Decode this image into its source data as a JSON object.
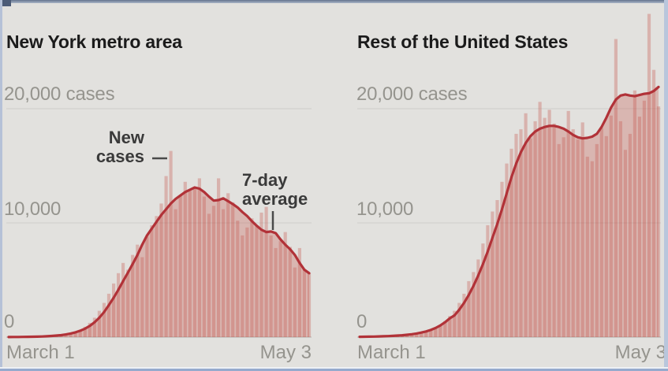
{
  "colors": {
    "background": "#e2e1de",
    "bar_fill": "rgba(197,82,72,0.32)",
    "area_fill": "rgba(197,82,72,0.30)",
    "avg_line": "#b13238",
    "grid_line": "#d2d1cd",
    "baseline": "#c2c1bd",
    "title_text": "#1b1b1b",
    "axis_text": "#95948e",
    "annotation_text": "#3a3a3a",
    "pointer": "#4a4a4a"
  },
  "panels": [
    {
      "title": "New York metro area",
      "y_labels": [
        "20,000 cases",
        "10,000",
        "0"
      ],
      "x_label_start": "March 1",
      "x_label_end": "May 3",
      "annotations": {
        "bars": "New\ncases",
        "line": "7-day\naverage"
      }
    },
    {
      "title": "Rest of the United States",
      "y_labels": [
        "20,000 cases",
        "10,000",
        "0"
      ],
      "x_label_start": "March 1",
      "x_label_end": "May 3"
    }
  ],
  "chart_data": [
    {
      "type": "bar",
      "title": "New York metro area",
      "xlabel": "",
      "ylabel": "cases",
      "x": {
        "start": "March 1",
        "end": "May 3",
        "unit": "day",
        "n": 64
      },
      "ylim": [
        0,
        29000
      ],
      "gridlines": [
        0,
        10000,
        20000
      ],
      "legend_position": "annotated-inline",
      "series": [
        {
          "name": "New cases",
          "type": "bar",
          "values": [
            5,
            8,
            10,
            14,
            18,
            25,
            35,
            50,
            70,
            95,
            130,
            180,
            250,
            350,
            480,
            650,
            900,
            1250,
            1700,
            2300,
            3000,
            3800,
            4700,
            5600,
            6500,
            5900,
            7200,
            8100,
            7000,
            8800,
            9800,
            10600,
            11700,
            14100,
            16300,
            11200,
            12400,
            13600,
            12800,
            13100,
            13900,
            12300,
            10800,
            11500,
            13900,
            11200,
            12600,
            11800,
            10200,
            8900,
            9600,
            10400,
            9800,
            10900,
            11400,
            8900,
            7800,
            8400,
            9200,
            7900,
            6100,
            7800,
            5900,
            5600
          ]
        },
        {
          "name": "7-day average",
          "type": "line",
          "values": [
            10,
            12,
            15,
            19,
            25,
            33,
            44,
            58,
            78,
            103,
            135,
            175,
            235,
            315,
            420,
            560,
            740,
            980,
            1300,
            1700,
            2200,
            2800,
            3450,
            4150,
            4900,
            5650,
            6400,
            7200,
            8100,
            8900,
            9500,
            10100,
            10700,
            11200,
            11700,
            12100,
            12400,
            12700,
            12900,
            13100,
            13000,
            12700,
            12300,
            11950,
            12000,
            12150,
            11900,
            11650,
            11350,
            10950,
            10600,
            10150,
            9750,
            9400,
            9200,
            9250,
            9100,
            8550,
            8100,
            7700,
            7200,
            6500,
            5900,
            5600
          ]
        }
      ]
    },
    {
      "type": "bar",
      "title": "Rest of the United States",
      "xlabel": "",
      "ylabel": "cases",
      "x": {
        "start": "March 1",
        "end": "May 3",
        "unit": "day",
        "n": 64
      },
      "ylim": [
        0,
        29000
      ],
      "gridlines": [
        0,
        10000,
        20000
      ],
      "legend_position": "none",
      "series": [
        {
          "name": "New cases",
          "type": "bar",
          "values": [
            20,
            25,
            30,
            38,
            45,
            60,
            75,
            95,
            120,
            150,
            190,
            240,
            300,
            380,
            480,
            620,
            800,
            1050,
            1400,
            1850,
            2300,
            3000,
            3800,
            4900,
            5700,
            6800,
            8200,
            9800,
            11000,
            12000,
            13600,
            15200,
            16500,
            17800,
            18200,
            19600,
            17400,
            18900,
            20600,
            19200,
            19900,
            18700,
            16900,
            17500,
            19800,
            18200,
            17300,
            18800,
            15800,
            15400,
            16900,
            18300,
            17600,
            19400,
            26100,
            18900,
            16400,
            17800,
            21600,
            19300,
            20700,
            28300,
            23400,
            20200
          ]
        },
        {
          "name": "7-day average",
          "type": "line",
          "values": [
            30,
            35,
            42,
            50,
            60,
            75,
            90,
            110,
            135,
            165,
            205,
            255,
            320,
            400,
            500,
            630,
            800,
            1020,
            1300,
            1650,
            1900,
            2400,
            3000,
            3700,
            4500,
            5400,
            6400,
            7500,
            8700,
            9900,
            11200,
            12600,
            14000,
            15200,
            16200,
            17000,
            17600,
            18000,
            18250,
            18400,
            18500,
            18500,
            18400,
            18250,
            18000,
            17700,
            17500,
            17400,
            17450,
            17550,
            17800,
            18400,
            19200,
            20100,
            20800,
            21150,
            21250,
            21150,
            21100,
            21200,
            21300,
            21350,
            21550,
            21900
          ]
        }
      ]
    }
  ]
}
